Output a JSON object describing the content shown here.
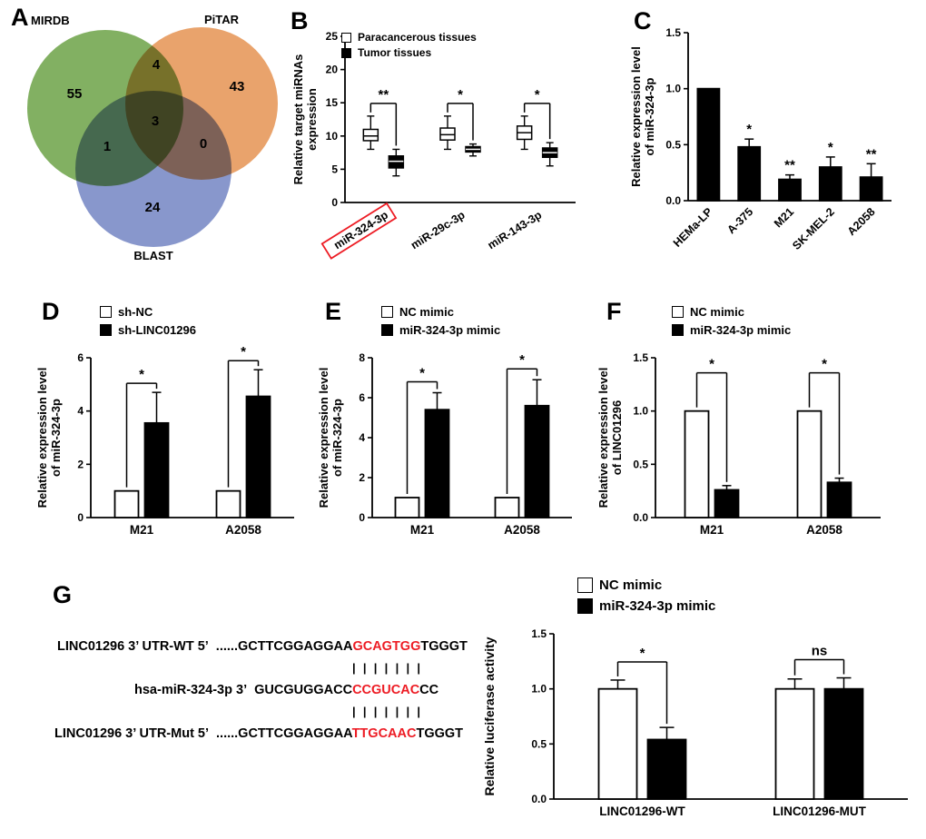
{
  "figure": {
    "background": "#ffffff",
    "accent_red": "#ed1c24"
  },
  "chart_data": [
    {
      "panel": "A",
      "type": "venn",
      "sets": [
        {
          "name": "MIRDB",
          "color": "#74a751"
        },
        {
          "name": "PiTAR",
          "color": "#e7995c"
        },
        {
          "name": "BLAST",
          "color": "#7b8cc7"
        }
      ],
      "regions": {
        "only_mirdb": 55,
        "only_pitar": 43,
        "only_blast": 24,
        "mirdb_pitar": 4,
        "mirdb_blast": 1,
        "pitar_blast": 0,
        "all_three": 3
      }
    },
    {
      "panel": "B",
      "type": "box",
      "ylabel": [
        "Relative target miRNAs",
        "expression"
      ],
      "ylim": [
        0,
        25
      ],
      "yticks": [
        "0",
        "5",
        "10",
        "15",
        "20",
        "25"
      ],
      "categories": [
        "miR-324-3p",
        "miR-29c-3p",
        "miR-143-3p"
      ],
      "highlight_index": 0,
      "highlight_color": "#ed1c24",
      "series": [
        {
          "name": "Paracancerous  tissues",
          "fill": "#ffffff",
          "boxes": [
            {
              "min": 8,
              "q1": 9.3,
              "median": 10,
              "q3": 11,
              "max": 13
            },
            {
              "min": 8,
              "q1": 9.4,
              "median": 10.2,
              "q3": 11.2,
              "max": 13
            },
            {
              "min": 8,
              "q1": 9.5,
              "median": 10.5,
              "q3": 11.5,
              "max": 13
            }
          ]
        },
        {
          "name": "Tumor tissues",
          "fill": "#000000",
          "boxes": [
            {
              "min": 4,
              "q1": 5.2,
              "median": 6.2,
              "q3": 7,
              "max": 8
            },
            {
              "min": 7,
              "q1": 7.6,
              "median": 8,
              "q3": 8.4,
              "max": 8.8
            },
            {
              "min": 5.5,
              "q1": 6.8,
              "median": 7.5,
              "q3": 8.2,
              "max": 9
            }
          ]
        }
      ],
      "significance": [
        "**",
        "*",
        "*"
      ]
    },
    {
      "panel": "C",
      "type": "bar",
      "ylabel": [
        "Relative expression level",
        "of miR-324-3p"
      ],
      "ylim": [
        0,
        1.5
      ],
      "yticks": [
        "0.0",
        "0.5",
        "1.0",
        "1.5"
      ],
      "categories": [
        "HEMa-LP",
        "A-375",
        "M21",
        "SK-MEL-2",
        "A2058"
      ],
      "series": [
        {
          "name": "",
          "fill": "#000000",
          "values": [
            1.0,
            0.48,
            0.19,
            0.3,
            0.21
          ],
          "errors": [
            0,
            0.07,
            0.04,
            0.09,
            0.12
          ]
        }
      ],
      "bar_significance": [
        "",
        "*",
        "**",
        "*",
        "**"
      ]
    },
    {
      "panel": "D",
      "type": "bar",
      "ylabel": [
        "Relative expression level",
        "of miR-324-3p"
      ],
      "ylim": [
        0,
        6
      ],
      "yticks": [
        "0",
        "2",
        "4",
        "6"
      ],
      "categories": [
        "M21",
        "A2058"
      ],
      "series": [
        {
          "name": "sh-NC",
          "fill": "#ffffff",
          "values": [
            1.0,
            1.0
          ],
          "errors": [
            0,
            0
          ]
        },
        {
          "name": "sh-LINC01296",
          "fill": "#000000",
          "values": [
            3.55,
            4.55
          ],
          "errors": [
            1.15,
            1.0
          ]
        }
      ],
      "significance": [
        "*",
        "*"
      ]
    },
    {
      "panel": "E",
      "type": "bar",
      "ylabel": [
        "Relative expression level",
        "of miR-324-3p"
      ],
      "ylim": [
        0,
        8
      ],
      "yticks": [
        "0",
        "2",
        "4",
        "6",
        "8"
      ],
      "categories": [
        "M21",
        "A2058"
      ],
      "series": [
        {
          "name": "NC mimic",
          "fill": "#ffffff",
          "values": [
            1.0,
            1.0
          ],
          "errors": [
            0,
            0
          ]
        },
        {
          "name": "miR-324-3p mimic",
          "fill": "#000000",
          "values": [
            5.4,
            5.6
          ],
          "errors": [
            0.85,
            1.3
          ]
        }
      ],
      "significance": [
        "*",
        "*"
      ]
    },
    {
      "panel": "F",
      "type": "bar",
      "ylabel": [
        "Relative expression level",
        "of LINC01296"
      ],
      "ylim": [
        0,
        1.5
      ],
      "yticks": [
        "0.0",
        "0.5",
        "1.0",
        "1.5"
      ],
      "categories": [
        "M21",
        "A2058"
      ],
      "series": [
        {
          "name": "NC mimic",
          "fill": "#ffffff",
          "values": [
            1.0,
            1.0
          ],
          "errors": [
            0,
            0
          ]
        },
        {
          "name": "miR-324-3p mimic",
          "fill": "#000000",
          "values": [
            0.26,
            0.33
          ],
          "errors": [
            0.04,
            0.04
          ]
        }
      ],
      "significance": [
        "*",
        "*"
      ]
    },
    {
      "panel": "G",
      "type": "sequence-alignment",
      "highlight_color": "#ed1c24",
      "match_count": 7,
      "match_marks": "|||||||",
      "rows": [
        {
          "label": "LINC01296 3’ UTR-WT  5’",
          "prefix": "......GCTTCGGAGGAA",
          "highlight": "GCAGTGG",
          "suffix": "TGGGT"
        },
        {
          "label": "hsa-miR-324-3p 3’",
          "prefix": "GUCGUGGACC",
          "highlight": "CCGUCAC",
          "suffix": "CC"
        },
        {
          "label": "LINC01296 3’ UTR-Mut 5’",
          "prefix": "......GCTTCGGAGGAA",
          "highlight": "TTGCAAC",
          "suffix": "TGGGT"
        }
      ]
    },
    {
      "panel": "",
      "type": "bar",
      "ylabel": [
        "Relative luciferase activity"
      ],
      "ylim": [
        0,
        1.5
      ],
      "yticks": [
        "0.0",
        "0.5",
        "1.0",
        "1.5"
      ],
      "categories": [
        "LINC01296-WT",
        "LINC01296-MUT"
      ],
      "series": [
        {
          "name": "NC mimic",
          "fill": "#ffffff",
          "values": [
            1.0,
            1.0
          ],
          "errors": [
            0.08,
            0.09
          ]
        },
        {
          "name": "miR-324-3p mimic",
          "fill": "#000000",
          "values": [
            0.54,
            1.0
          ],
          "errors": [
            0.11,
            0.1
          ]
        }
      ],
      "significance": [
        "*",
        "ns"
      ]
    }
  ]
}
